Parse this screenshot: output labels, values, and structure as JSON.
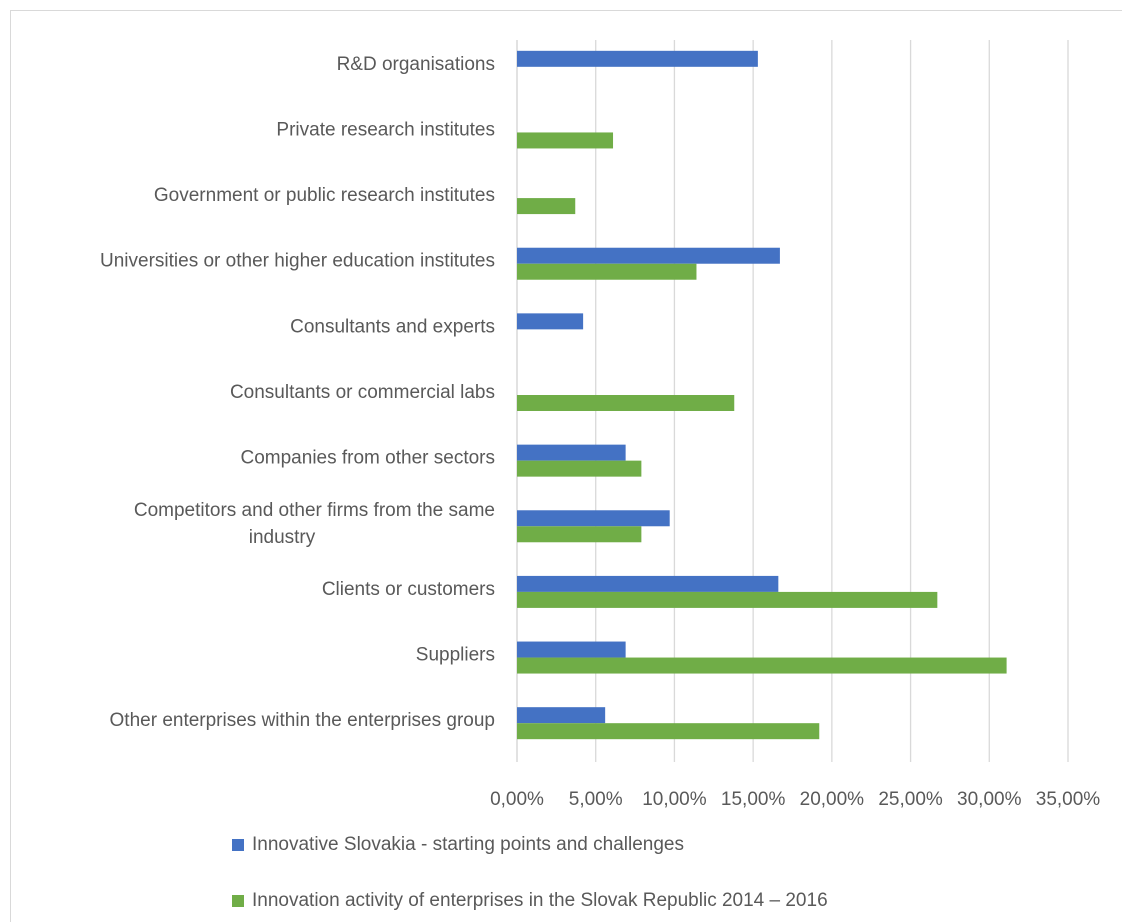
{
  "chart_data": {
    "type": "bar",
    "orientation": "horizontal",
    "title": "",
    "xlabel": "",
    "ylabel": "",
    "xlim": [
      0,
      35
    ],
    "x_ticks": [
      "0,00%",
      "5,00%",
      "10,00%",
      "15,00%",
      "20,00%",
      "25,00%",
      "30,00%",
      "35,00%"
    ],
    "grid": true,
    "legend_position": "bottom",
    "categories": [
      {
        "lines": [
          "R&D organisations"
        ]
      },
      {
        "lines": [
          "Private research institutes"
        ]
      },
      {
        "lines": [
          "Government or public research institutes"
        ]
      },
      {
        "lines": [
          "Universities or other higher education institutes"
        ]
      },
      {
        "lines": [
          "Consultants and experts"
        ]
      },
      {
        "lines": [
          "Consultants or commercial labs"
        ]
      },
      {
        "lines": [
          "Companies from other sectors"
        ]
      },
      {
        "lines": [
          "Competitors and other firms from the same",
          "industry"
        ]
      },
      {
        "lines": [
          "Clients or customers"
        ]
      },
      {
        "lines": [
          "Suppliers"
        ]
      },
      {
        "lines": [
          "Other enterprises within the enterprises group"
        ]
      }
    ],
    "series": [
      {
        "name": "Innovative Slovakia - starting points and challenges",
        "color": "#4472c4",
        "values": [
          15.3,
          null,
          null,
          16.7,
          4.2,
          null,
          6.9,
          9.7,
          16.6,
          6.9,
          5.6
        ]
      },
      {
        "name": "Innovation activity of enterprises in the Slovak Republic 2014 – 2016",
        "color": "#70ad47",
        "values": [
          null,
          6.1,
          3.7,
          11.4,
          null,
          13.8,
          7.9,
          7.9,
          26.7,
          31.1,
          19.2
        ]
      }
    ]
  }
}
